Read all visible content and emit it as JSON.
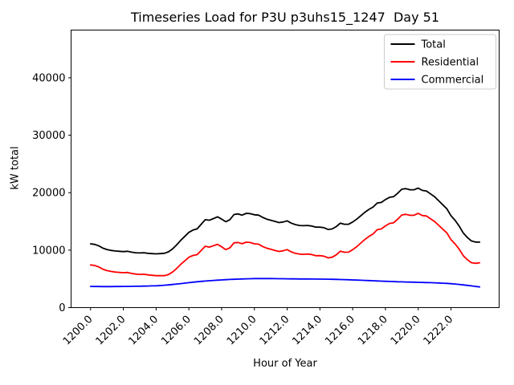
{
  "chart_data": {
    "type": "line",
    "title": "Timeseries Load for P3U p3uhs15_1247  Day 51",
    "xlabel": "Hour of Year",
    "ylabel": "kW total",
    "xlim": [
      1198.81,
      1224.94
    ],
    "ylim": [
      0,
      48300
    ],
    "grid": false,
    "legend": {
      "position": "upper right",
      "entries": [
        "Total",
        "Residential",
        "Commercial"
      ]
    },
    "x_tick_values": [
      1200,
      1202,
      1204,
      1206,
      1208,
      1210,
      1212,
      1214,
      1216,
      1218,
      1220,
      1222
    ],
    "x_tick_labels": [
      "1200.0",
      "1202.0",
      "1204.0",
      "1206.0",
      "1208.0",
      "1210.0",
      "1212.0",
      "1214.0",
      "1216.0",
      "1218.0",
      "1220.0",
      "1222.0"
    ],
    "y_tick_values": [
      0,
      10000,
      20000,
      30000,
      40000
    ],
    "y_tick_labels": [
      "0",
      "10000",
      "20000",
      "30000",
      "40000"
    ],
    "x": [
      1200.0,
      1200.25,
      1200.5,
      1200.75,
      1201.0,
      1201.25,
      1201.5,
      1201.75,
      1202.0,
      1202.25,
      1202.5,
      1202.75,
      1203.0,
      1203.25,
      1203.5,
      1203.75,
      1204.0,
      1204.25,
      1204.5,
      1204.75,
      1205.0,
      1205.25,
      1205.5,
      1205.75,
      1206.0,
      1206.25,
      1206.5,
      1206.75,
      1207.0,
      1207.25,
      1207.5,
      1207.75,
      1208.0,
      1208.25,
      1208.5,
      1208.75,
      1209.0,
      1209.25,
      1209.5,
      1209.75,
      1210.0,
      1210.25,
      1210.5,
      1210.75,
      1211.0,
      1211.25,
      1211.5,
      1211.75,
      1212.0,
      1212.25,
      1212.5,
      1212.75,
      1213.0,
      1213.25,
      1213.5,
      1213.75,
      1214.0,
      1214.25,
      1214.5,
      1214.75,
      1215.0,
      1215.25,
      1215.5,
      1215.75,
      1216.0,
      1216.25,
      1216.5,
      1216.75,
      1217.0,
      1217.25,
      1217.5,
      1217.75,
      1218.0,
      1218.25,
      1218.5,
      1218.75,
      1219.0,
      1219.25,
      1219.5,
      1219.75,
      1220.0,
      1220.25,
      1220.5,
      1220.75,
      1221.0,
      1221.25,
      1221.5,
      1221.75,
      1222.0,
      1222.25,
      1222.5,
      1222.75,
      1223.0,
      1223.25,
      1223.5,
      1223.75
    ],
    "series": [
      {
        "name": "Total",
        "color": "#000000",
        "values": [
          11100,
          11000,
          10750,
          10350,
          10100,
          9950,
          9850,
          9800,
          9750,
          9800,
          9650,
          9550,
          9500,
          9550,
          9450,
          9400,
          9350,
          9400,
          9450,
          9700,
          10200,
          10900,
          11700,
          12400,
          13100,
          13500,
          13700,
          14500,
          15300,
          15200,
          15500,
          15800,
          15400,
          14950,
          15300,
          16200,
          16300,
          16100,
          16400,
          16350,
          16150,
          16100,
          15700,
          15400,
          15200,
          15000,
          14800,
          14900,
          15100,
          14700,
          14450,
          14300,
          14250,
          14300,
          14200,
          14000,
          14000,
          13900,
          13600,
          13700,
          14100,
          14700,
          14500,
          14500,
          14900,
          15400,
          16000,
          16600,
          17100,
          17500,
          18200,
          18300,
          18800,
          19200,
          19300,
          19900,
          20600,
          20700,
          20500,
          20500,
          20800,
          20400,
          20300,
          19800,
          19300,
          18600,
          17900,
          17200,
          16000,
          15200,
          14200,
          13000,
          12200,
          11600,
          11400,
          11400
        ]
      },
      {
        "name": "Residential",
        "color": "#ff0000",
        "values": [
          7420,
          7330,
          7080,
          6690,
          6440,
          6290,
          6180,
          6130,
          6070,
          6110,
          5950,
          5840,
          5780,
          5810,
          5690,
          5620,
          5550,
          5560,
          5560,
          5750,
          6180,
          6800,
          7520,
          8140,
          8760,
          9080,
          9210,
          9940,
          10680,
          10520,
          10770,
          11020,
          10580,
          10090,
          10400,
          11270,
          11340,
          11110,
          11390,
          11320,
          11100,
          11040,
          10640,
          10340,
          10150,
          9960,
          9770,
          9880,
          10090,
          9700,
          9450,
          9310,
          9270,
          9320,
          9230,
          9030,
          9040,
          8950,
          8660,
          8770,
          9190,
          9810,
          9630,
          9650,
          10080,
          10610,
          11240,
          11870,
          12400,
          12830,
          13560,
          13690,
          14220,
          14650,
          14770,
          15400,
          16120,
          16240,
          16060,
          16080,
          16400,
          16020,
          15940,
          15460,
          14990,
          14320,
          13650,
          12990,
          11840,
          11100,
          10170,
          9050,
          8330,
          7820,
          7710,
          7800
        ]
      },
      {
        "name": "Commercial",
        "color": "#0000ff",
        "values": [
          3680,
          3670,
          3670,
          3660,
          3660,
          3660,
          3670,
          3670,
          3680,
          3690,
          3700,
          3710,
          3720,
          3740,
          3760,
          3780,
          3800,
          3840,
          3890,
          3950,
          4020,
          4100,
          4180,
          4260,
          4340,
          4420,
          4490,
          4560,
          4620,
          4680,
          4730,
          4780,
          4820,
          4860,
          4900,
          4930,
          4960,
          4990,
          5010,
          5030,
          5050,
          5060,
          5060,
          5060,
          5050,
          5040,
          5030,
          5020,
          5010,
          5000,
          5000,
          4990,
          4980,
          4980,
          4970,
          4970,
          4960,
          4950,
          4940,
          4930,
          4910,
          4890,
          4870,
          4850,
          4820,
          4790,
          4760,
          4730,
          4700,
          4670,
          4640,
          4610,
          4580,
          4550,
          4530,
          4500,
          4480,
          4460,
          4440,
          4420,
          4400,
          4380,
          4360,
          4340,
          4310,
          4280,
          4250,
          4210,
          4160,
          4100,
          4030,
          3950,
          3870,
          3780,
          3690,
          3600
        ]
      }
    ]
  }
}
